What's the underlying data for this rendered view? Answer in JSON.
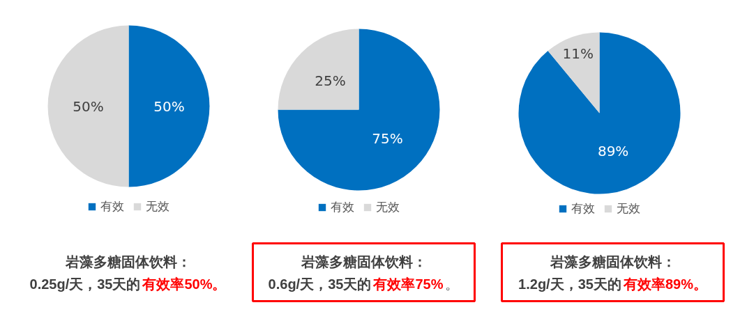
{
  "chart_data": [
    {
      "type": "pie",
      "categories": [
        "有效",
        "无效"
      ],
      "values": [
        50,
        50
      ],
      "colors": [
        "#0070c0",
        "#d9d9d9"
      ],
      "value_labels": [
        "50%",
        "50%"
      ],
      "legend": "bottom",
      "annotations": [
        "岩藻多糖固体饮料：",
        "0.25g/天，35天的",
        "有效率50%。"
      ]
    },
    {
      "type": "pie",
      "categories": [
        "有效",
        "无效"
      ],
      "values": [
        75,
        25
      ],
      "colors": [
        "#0070c0",
        "#d9d9d9"
      ],
      "value_labels": [
        "75%",
        "25%"
      ],
      "legend": "bottom",
      "annotations": [
        "岩藻多糖固体饮料：",
        "0.6g/天，35天的",
        "有效率75%",
        "。"
      ]
    },
    {
      "type": "pie",
      "categories": [
        "有效",
        "无效"
      ],
      "values": [
        89,
        11
      ],
      "colors": [
        "#0070c0",
        "#d9d9d9"
      ],
      "value_labels": [
        "89%",
        "11%"
      ],
      "legend": "bottom",
      "annotations": [
        "岩藻多糖固体饮料：",
        "1.2g/天，35天的",
        "有效率89%。"
      ]
    }
  ]
}
